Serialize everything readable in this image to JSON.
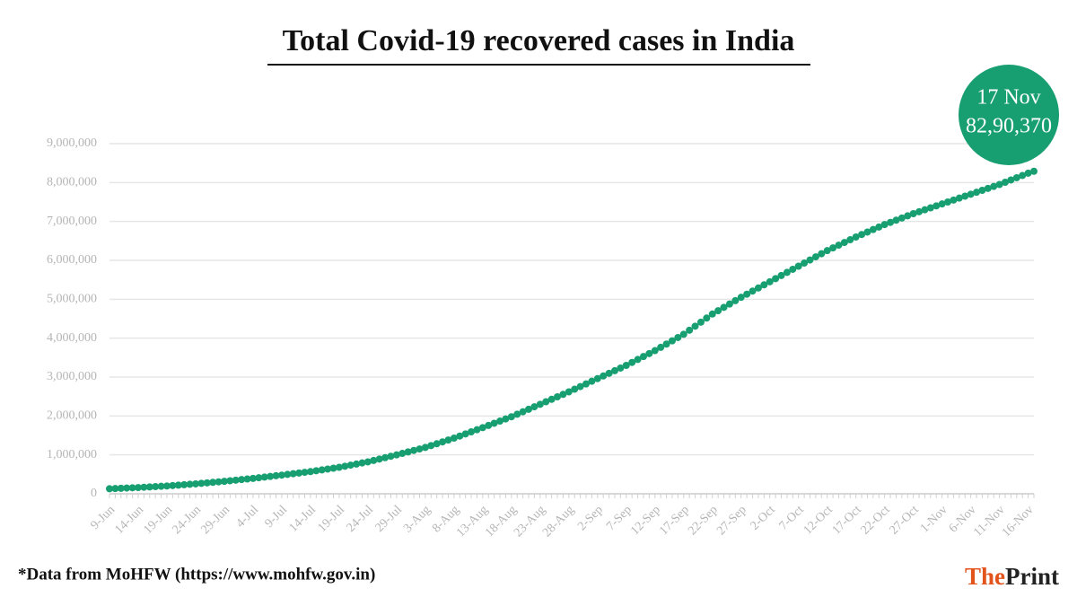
{
  "chart_data": {
    "type": "line",
    "title": "Total Covid-19 recovered cases in India",
    "categories": [
      "9-Jun",
      null,
      null,
      null,
      null,
      "14-Jun",
      null,
      null,
      null,
      null,
      "19-Jun",
      null,
      null,
      null,
      null,
      "24-Jun",
      null,
      null,
      null,
      null,
      "29-Jun",
      null,
      null,
      null,
      null,
      "4-Jul",
      null,
      null,
      null,
      null,
      "9-Jul",
      null,
      null,
      null,
      null,
      "14-Jul",
      null,
      null,
      null,
      null,
      "19-Jul",
      null,
      null,
      null,
      null,
      "24-Jul",
      null,
      null,
      null,
      null,
      "29-Jul",
      null,
      null,
      null,
      null,
      "3-Aug",
      null,
      null,
      null,
      null,
      "8-Aug",
      null,
      null,
      null,
      null,
      "13-Aug",
      null,
      null,
      null,
      null,
      "18-Aug",
      null,
      null,
      null,
      null,
      "23-Aug",
      null,
      null,
      null,
      null,
      "28-Aug",
      null,
      null,
      null,
      null,
      "2-Sep",
      null,
      null,
      null,
      null,
      "7-Sep",
      null,
      null,
      null,
      null,
      "12-Sep",
      null,
      null,
      null,
      null,
      "17-Sep",
      null,
      null,
      null,
      null,
      "22-Sep",
      null,
      null,
      null,
      null,
      "27-Sep",
      null,
      null,
      null,
      null,
      "2-Oct",
      null,
      null,
      null,
      null,
      "7-Oct",
      null,
      null,
      null,
      null,
      "12-Oct",
      null,
      null,
      null,
      null,
      "17-Oct",
      null,
      null,
      null,
      null,
      "22-Oct",
      null,
      null,
      null,
      null,
      "27-Oct",
      null,
      null,
      null,
      null,
      "1-Nov",
      null,
      null,
      null,
      null,
      "6-Nov",
      null,
      null,
      null,
      null,
      "11-Nov",
      null,
      null,
      null,
      null,
      "16-Nov",
      null
    ],
    "values": [
      129000,
      135200,
      141400,
      147600,
      153800,
      160000,
      168000,
      176000,
      184000,
      192000,
      200000,
      211000,
      222000,
      233000,
      244000,
      255000,
      268000,
      281000,
      294000,
      307000,
      320000,
      335000,
      350000,
      365000,
      380000,
      395000,
      412000,
      429000,
      446000,
      463000,
      480000,
      498000,
      516000,
      534000,
      552000,
      570000,
      592000,
      614000,
      636000,
      658000,
      680000,
      708000,
      736000,
      764000,
      792000,
      820000,
      856000,
      892000,
      928000,
      964000,
      1000000,
      1038000,
      1076000,
      1114000,
      1152000,
      1190000,
      1238000,
      1286000,
      1334000,
      1382000,
      1430000,
      1484000,
      1538000,
      1592000,
      1646000,
      1700000,
      1756000,
      1812000,
      1868000,
      1924000,
      1980000,
      2044000,
      2108000,
      2172000,
      2236000,
      2300000,
      2364000,
      2428000,
      2492000,
      2556000,
      2620000,
      2688000,
      2756000,
      2824000,
      2892000,
      2960000,
      3028000,
      3096000,
      3164000,
      3232000,
      3300000,
      3376000,
      3452000,
      3528000,
      3604000,
      3680000,
      3764000,
      3848000,
      3932000,
      4016000,
      4100000,
      4204000,
      4308000,
      4412000,
      4516000,
      4620000,
      4706000,
      4792000,
      4878000,
      4964000,
      5050000,
      5130000,
      5210000,
      5290000,
      5370000,
      5450000,
      5530000,
      5610000,
      5690000,
      5770000,
      5850000,
      5930000,
      6010000,
      6090000,
      6170000,
      6250000,
      6320000,
      6390000,
      6460000,
      6530000,
      6600000,
      6664000,
      6728000,
      6792000,
      6856000,
      6920000,
      6976000,
      7032000,
      7088000,
      7144000,
      7200000,
      7250000,
      7300000,
      7350000,
      7400000,
      7450000,
      7500000,
      7550000,
      7600000,
      7650000,
      7700000,
      7750000,
      7800000,
      7850000,
      7900000,
      7950000,
      8008000,
      8066000,
      8124000,
      8182000,
      8240000,
      8290370
    ],
    "color": "#189f71",
    "ylim": [
      0,
      9000000
    ],
    "yticks": [
      0,
      {
        "value": 1000000,
        "label": "1,000,000"
      },
      {
        "value": 2000000,
        "label": "2,000,000"
      },
      {
        "value": 3000000,
        "label": "3,000,000"
      },
      {
        "value": 4000000,
        "label": "4,000,000"
      },
      {
        "value": 5000000,
        "label": "5,000,000"
      },
      {
        "value": 6000000,
        "label": "6,000,000"
      },
      {
        "value": 7000000,
        "label": "7,000,000"
      },
      {
        "value": 8000000,
        "label": "8,000,000"
      },
      {
        "value": 9000000,
        "label": "9,000,000"
      }
    ],
    "grid": true,
    "annotation": {
      "label": "17 Nov",
      "value_label": "82,90,370"
    },
    "source_note": "*Data from MoHFW (https://www.mohfw.gov.in)",
    "brand": {
      "first": "The",
      "second": "Print"
    }
  }
}
